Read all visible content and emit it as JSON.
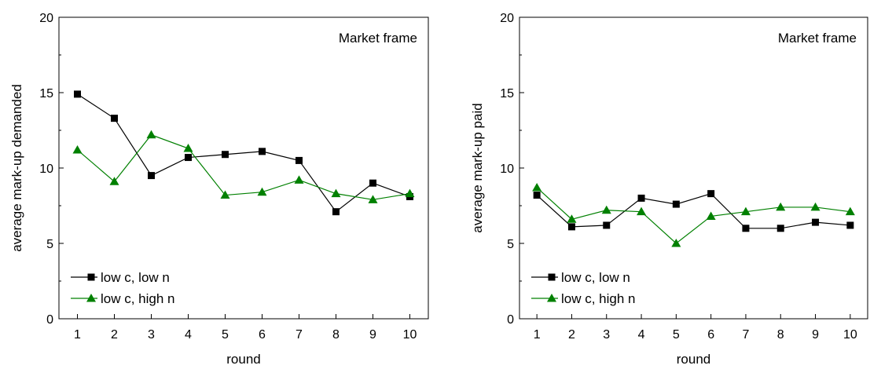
{
  "chart_data": [
    {
      "type": "line",
      "title": "Market frame",
      "xlabel": "round",
      "ylabel": "average mark-up demanded",
      "xlim": [
        0.5,
        10.5
      ],
      "ylim": [
        0,
        20
      ],
      "x_ticks": [
        1,
        2,
        3,
        4,
        5,
        6,
        7,
        8,
        9,
        10
      ],
      "y_ticks": [
        0,
        5,
        10,
        15,
        20
      ],
      "grid": false,
      "legend_position": "bottom-left",
      "series": [
        {
          "name": "low c, low n",
          "marker": "square",
          "color": "#000000",
          "x": [
            1,
            2,
            3,
            4,
            5,
            6,
            7,
            8,
            9,
            10
          ],
          "values": [
            14.9,
            13.3,
            9.5,
            10.7,
            10.9,
            11.1,
            10.5,
            7.1,
            9.0,
            8.1
          ]
        },
        {
          "name": "low c, high n",
          "marker": "triangle",
          "color": "#008000",
          "x": [
            1,
            2,
            3,
            4,
            5,
            6,
            7,
            8,
            9,
            10
          ],
          "values": [
            11.2,
            9.1,
            12.2,
            11.3,
            8.2,
            8.4,
            9.2,
            8.3,
            7.9,
            8.3
          ]
        }
      ]
    },
    {
      "type": "line",
      "title": "Market frame",
      "xlabel": "round",
      "ylabel": "average mark-up paid",
      "xlim": [
        0.5,
        10.5
      ],
      "ylim": [
        0,
        20
      ],
      "x_ticks": [
        1,
        2,
        3,
        4,
        5,
        6,
        7,
        8,
        9,
        10
      ],
      "y_ticks": [
        0,
        5,
        10,
        15,
        20
      ],
      "grid": false,
      "legend_position": "bottom-left",
      "series": [
        {
          "name": "low c, low n",
          "marker": "square",
          "color": "#000000",
          "x": [
            1,
            2,
            3,
            4,
            5,
            6,
            7,
            8,
            9,
            10
          ],
          "values": [
            8.2,
            6.1,
            6.2,
            8.0,
            7.6,
            8.3,
            6.0,
            6.0,
            6.4,
            6.2
          ]
        },
        {
          "name": "low c, high n",
          "marker": "triangle",
          "color": "#008000",
          "x": [
            1,
            2,
            3,
            4,
            5,
            6,
            7,
            8,
            9,
            10
          ],
          "values": [
            8.7,
            6.6,
            7.2,
            7.1,
            5.0,
            6.8,
            7.1,
            7.4,
            7.4,
            7.1
          ]
        }
      ]
    }
  ]
}
